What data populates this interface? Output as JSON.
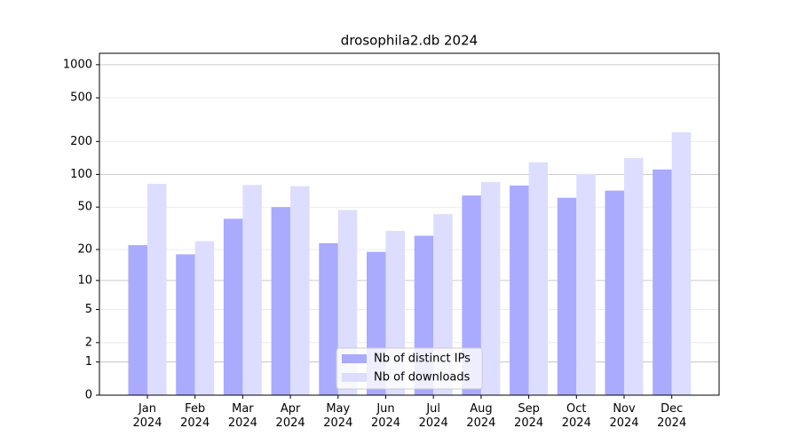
{
  "chart_data": {
    "type": "bar",
    "title": "drosophila2.db 2024",
    "categories": [
      "Jan\n2024",
      "Feb\n2024",
      "Mar\n2024",
      "Apr\n2024",
      "May\n2024",
      "Jun\n2024",
      "Jul\n2024",
      "Aug\n2024",
      "Sep\n2024",
      "Oct\n2024",
      "Nov\n2024",
      "Dec\n2024"
    ],
    "series": [
      {
        "name": "Nb of distinct IPs",
        "color": "#aaaaff",
        "values": [
          22,
          18,
          39,
          50,
          23,
          19,
          27,
          64,
          79,
          61,
          71,
          111
        ]
      },
      {
        "name": "Nb of downloads",
        "color": "#ddddff",
        "values": [
          82,
          24,
          80,
          78,
          47,
          30,
          43,
          85,
          129,
          101,
          141,
          243
        ]
      }
    ],
    "yscale": "log1p",
    "ylim": [
      0,
      1270
    ],
    "yticks": [
      0,
      1,
      2,
      5,
      10,
      20,
      50,
      100,
      200,
      500,
      1000
    ],
    "grid": true,
    "legend": "lower center"
  }
}
